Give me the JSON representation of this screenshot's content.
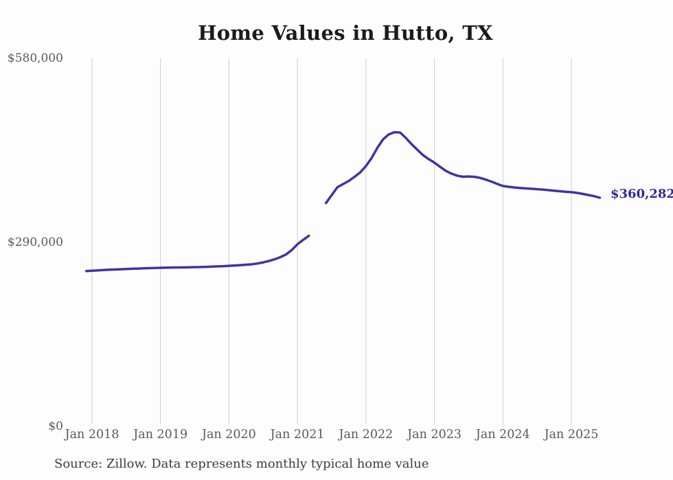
{
  "page": {
    "background": "#fdfdfd"
  },
  "chart_data": {
    "type": "line",
    "title": "Home Values in Hutto, TX",
    "source_note": "Source: Zillow. Data represents monthly typical home value",
    "series_name": "Monthly typical home value",
    "unit": "USD",
    "end_label": "$360,282",
    "end_value": 360282,
    "ylim": [
      0,
      580000
    ],
    "y_ticks": [
      0,
      290000,
      580000
    ],
    "y_tick_labels": [
      "$0",
      "$290,000",
      "$580,000"
    ],
    "x_tick_labels": [
      "Jan 2018",
      "Jan 2019",
      "Jan 2020",
      "Jan 2021",
      "Jan 2022",
      "Jan 2023",
      "Jan 2024",
      "Jan 2025"
    ],
    "start_month": "2017-12",
    "end_month": "2025-06",
    "gap_months": [
      "2021-04",
      "2021-05"
    ],
    "grid": "vertical-only",
    "legend": "none",
    "values": [
      244900,
      245400,
      245900,
      246400,
      246900,
      247300,
      247700,
      248100,
      248500,
      248800,
      249100,
      249400,
      249700,
      250000,
      250200,
      250400,
      250500,
      250600,
      250800,
      251000,
      251200,
      251500,
      251800,
      252200,
      252600,
      253100,
      253600,
      254200,
      254800,
      255500,
      256800,
      258500,
      260700,
      263400,
      266700,
      271000,
      278000,
      287000,
      294000,
      300500,
      null,
      null,
      352000,
      364600,
      377000,
      382000,
      386800,
      393300,
      400300,
      410300,
      423100,
      439000,
      452300,
      460200,
      463700,
      463100,
      454600,
      444800,
      436100,
      427500,
      421200,
      415600,
      409100,
      402700,
      398300,
      395200,
      393400,
      393900,
      393300,
      391700,
      388900,
      385800,
      382200,
      378800,
      377600,
      376600,
      375800,
      375100,
      374500,
      373900,
      373200,
      372400,
      371500,
      370600,
      369800,
      369100,
      368000,
      366400,
      364700,
      362800,
      360282
    ],
    "colors": {
      "line": "#3b35a2",
      "end_label": "#2e2996",
      "grid": "#cdcdcd",
      "axis_text": "#595959",
      "title_text": "#1b1b1b",
      "source_text": "#3c3c3c"
    }
  }
}
